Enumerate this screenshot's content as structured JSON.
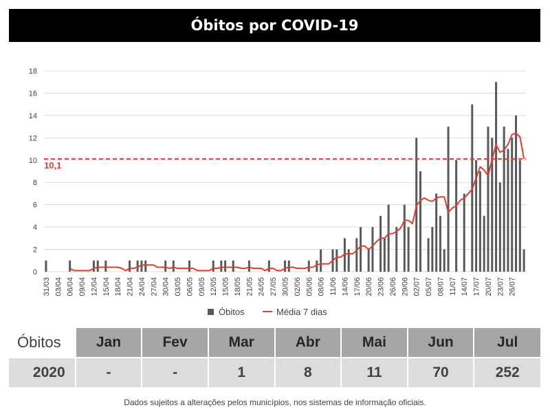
{
  "title": "Óbitos por COVID-19",
  "chart_data": {
    "type": "bar",
    "x": [
      "31/03",
      "01/04",
      "02/04",
      "03/04",
      "04/04",
      "05/04",
      "06/04",
      "07/04",
      "08/04",
      "09/04",
      "10/04",
      "11/04",
      "12/04",
      "13/04",
      "14/04",
      "15/04",
      "16/04",
      "17/04",
      "18/04",
      "19/04",
      "20/04",
      "21/04",
      "22/04",
      "23/04",
      "24/04",
      "25/04",
      "26/04",
      "27/04",
      "28/04",
      "29/04",
      "30/04",
      "01/05",
      "02/05",
      "03/05",
      "04/05",
      "05/05",
      "06/05",
      "07/05",
      "08/05",
      "09/05",
      "10/05",
      "11/05",
      "12/05",
      "13/05",
      "14/05",
      "15/05",
      "16/05",
      "17/05",
      "18/05",
      "19/05",
      "20/05",
      "21/05",
      "22/05",
      "23/05",
      "24/05",
      "25/05",
      "26/05",
      "27/05",
      "28/05",
      "29/05",
      "30/05",
      "31/05",
      "01/06",
      "02/06",
      "03/06",
      "04/06",
      "05/06",
      "06/06",
      "07/06",
      "08/06",
      "09/06",
      "10/06",
      "11/06",
      "12/06",
      "13/06",
      "14/06",
      "15/06",
      "16/06",
      "17/06",
      "18/06",
      "19/06",
      "20/06",
      "21/06",
      "22/06",
      "23/06",
      "24/06",
      "25/06",
      "26/06",
      "27/06",
      "28/06",
      "29/06",
      "30/06",
      "01/07",
      "02/07",
      "03/07",
      "04/07",
      "05/07",
      "06/07",
      "07/07",
      "08/07",
      "09/07",
      "10/07",
      "11/07",
      "12/07",
      "13/07",
      "14/07",
      "15/07",
      "16/07",
      "17/07",
      "18/07",
      "19/07",
      "20/07",
      "21/07",
      "22/07",
      "23/07",
      "24/07",
      "25/07",
      "26/07",
      "27/07",
      "28/07",
      "29/07"
    ],
    "xtick_labels": [
      "31/03",
      "03/04",
      "06/04",
      "09/04",
      "12/04",
      "15/04",
      "18/04",
      "21/04",
      "24/04",
      "27/04",
      "30/04",
      "03/05",
      "06/05",
      "09/05",
      "12/05",
      "15/05",
      "18/05",
      "21/05",
      "24/05",
      "27/05",
      "30/05",
      "02/06",
      "05/06",
      "08/06",
      "11/06",
      "14/06",
      "17/06",
      "20/06",
      "23/06",
      "26/06",
      "29/06",
      "02/07",
      "05/07",
      "08/07",
      "11/07",
      "14/07",
      "17/07",
      "20/07",
      "23/07",
      "26/07"
    ],
    "series": [
      {
        "name": "Óbitos",
        "kind": "bar",
        "color": "#595959",
        "values": [
          1,
          0,
          0,
          0,
          0,
          0,
          1,
          0,
          0,
          0,
          0,
          0,
          1,
          1,
          0,
          1,
          0,
          0,
          0,
          0,
          0,
          1,
          0,
          1,
          1,
          1,
          0,
          0,
          0,
          0,
          1,
          0,
          1,
          0,
          0,
          0,
          1,
          0,
          0,
          0,
          0,
          0,
          1,
          0,
          1,
          1,
          0,
          1,
          0,
          0,
          0,
          1,
          0,
          0,
          0,
          0,
          1,
          0,
          0,
          0,
          1,
          1,
          0,
          0,
          0,
          0,
          1,
          0,
          1,
          2,
          0,
          0,
          2,
          2,
          0,
          3,
          2,
          0,
          3,
          4,
          0,
          2,
          4,
          0,
          5,
          3,
          6,
          0,
          4,
          0,
          6,
          4,
          0,
          12,
          9,
          0,
          3,
          4,
          7,
          5,
          2,
          13,
          0,
          10,
          0,
          7,
          0,
          15,
          10,
          9,
          5,
          13,
          12,
          17,
          8,
          13,
          11,
          12,
          14,
          10,
          2
        ]
      },
      {
        "name": "Média 7 dias",
        "kind": "line",
        "color": "#e03c31",
        "values": [
          null,
          null,
          null,
          null,
          null,
          null,
          0.3,
          0.1,
          0.1,
          0.1,
          0.1,
          0.1,
          0.3,
          0.4,
          0.4,
          0.4,
          0.4,
          0.4,
          0.4,
          0.3,
          0.1,
          0.3,
          0.3,
          0.4,
          0.6,
          0.6,
          0.6,
          0.6,
          0.4,
          0.4,
          0.4,
          0.3,
          0.4,
          0.3,
          0.3,
          0.3,
          0.3,
          0.3,
          0.1,
          0.1,
          0.1,
          0.1,
          0.3,
          0.3,
          0.4,
          0.4,
          0.4,
          0.4,
          0.4,
          0.3,
          0.3,
          0.4,
          0.3,
          0.3,
          0.3,
          0.1,
          0.3,
          0.3,
          0.1,
          0.1,
          0.3,
          0.4,
          0.4,
          0.3,
          0.3,
          0.3,
          0.4,
          0.4,
          0.6,
          0.7,
          0.7,
          0.7,
          1.0,
          1.3,
          1.3,
          1.6,
          1.6,
          1.6,
          1.9,
          2.3,
          2.3,
          2.0,
          2.3,
          2.7,
          3.0,
          3.0,
          3.4,
          3.4,
          3.6,
          3.9,
          4.6,
          4.6,
          4.3,
          5.9,
          6.4,
          6.6,
          6.4,
          6.3,
          6.6,
          6.7,
          6.7,
          5.3,
          5.7,
          5.9,
          6.4,
          6.6,
          7.0,
          7.4,
          8.4,
          9.4,
          9.1,
          8.6,
          10.1,
          11.4,
          10.7,
          10.9,
          11.4,
          12.3,
          12.4,
          12.1,
          10.1
        ]
      }
    ],
    "reference_line": {
      "value": 10.1,
      "label": "10,1",
      "color": "#e03c31",
      "style": "dashed"
    },
    "ylim": [
      0,
      18
    ],
    "yticks": [
      0,
      2,
      4,
      6,
      8,
      10,
      12,
      14,
      16,
      18
    ],
    "grid": true,
    "legend_position": "bottom",
    "legend": [
      {
        "label": "Óbitos",
        "marker": "square",
        "color": "#595959"
      },
      {
        "label": "Média 7 dias",
        "marker": "line",
        "color": "#e03c31"
      }
    ]
  },
  "table": {
    "header_label": "Óbitos",
    "months": [
      "Jan",
      "Fev",
      "Mar",
      "Abr",
      "Mai",
      "Jun",
      "Jul"
    ],
    "rows": [
      {
        "label": "2020",
        "values": [
          "-",
          "-",
          "1",
          "8",
          "11",
          "70",
          "252"
        ]
      }
    ]
  },
  "footnote": "Dados sujeitos a alterações pelos municípios, nos sistemas de informação oficiais."
}
